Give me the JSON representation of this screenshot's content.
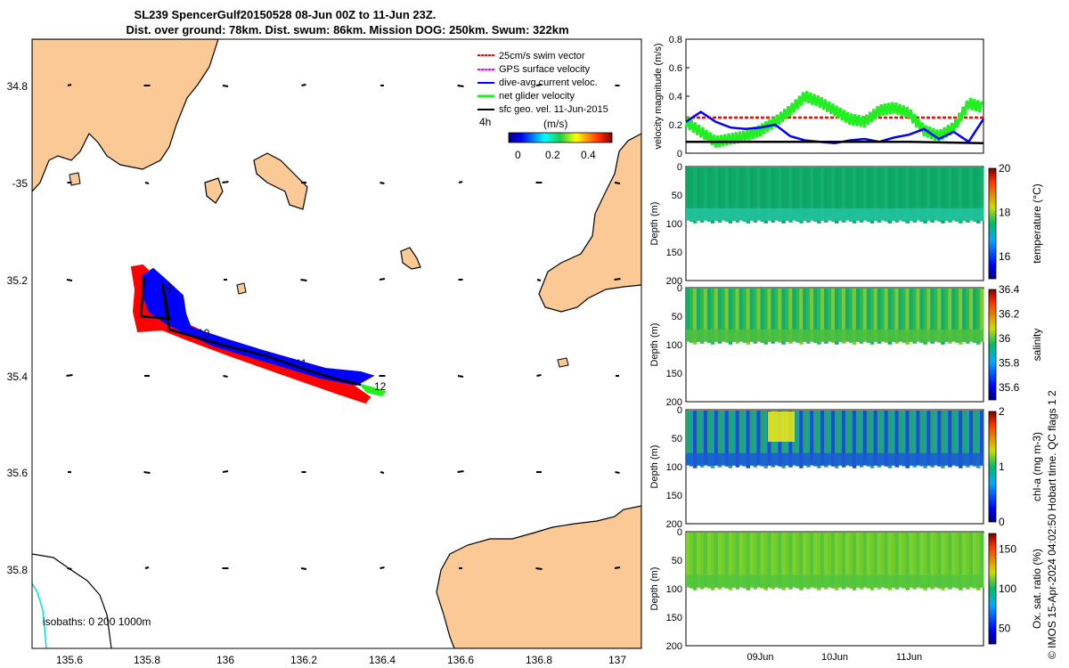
{
  "header": {
    "title_line1": "SL239 SpencerGulf20150528 08-Jun 00Z to 11-Jun 23Z.",
    "title_line2": "Dist. over ground: 78km. Dist. swum: 86km. Mission DOG: 250km. Swum: 322km"
  },
  "map": {
    "lon_ticks": [
      "135.6",
      "135.8",
      "136",
      "136.2",
      "136.4",
      "136.6",
      "136.8",
      "137"
    ],
    "lat_ticks": [
      "34.8",
      "-35",
      "35.2",
      "35.4",
      "35.6",
      "35.8"
    ],
    "legend": [
      {
        "label": "25cm/s swim vector",
        "color": "#ff0000"
      },
      {
        "label": "GPS surface velocity",
        "color": "#ff00ff"
      },
      {
        "label": "dive-avg current veloc.",
        "color": "#0000ff"
      },
      {
        "label": "net glider velocity",
        "color": "#00dd00"
      },
      {
        "label": "sfc geo. vel. 11-Jun-2015",
        "color": "#000000"
      }
    ],
    "interval_label": "4h",
    "colorbar_unit": "(m/s)",
    "colorbar_ticks": [
      "0",
      "0.2",
      "0.4"
    ],
    "day_labels": [
      "9",
      "10",
      "11",
      "12"
    ],
    "isobaths_label": "isobaths: 0   200  1000m",
    "land_color": "#fbc996"
  },
  "chart_data": [
    {
      "type": "line",
      "title": "",
      "xlabel": "",
      "ylabel": "velocity magnitude (m/s)",
      "ylim": [
        0,
        0.8
      ],
      "yticks": [
        "0",
        "0.2",
        "0.4",
        "0.6",
        "0.8"
      ],
      "xlim_days": [
        8.0,
        12.0
      ],
      "series": [
        {
          "name": "25cm/s swim vector",
          "color": "#ff0000",
          "x": [
            8.0,
            12.0
          ],
          "values": [
            0.25,
            0.25
          ]
        },
        {
          "name": "net glider velocity",
          "color": "#22ee22",
          "x": [
            8.0,
            8.2,
            8.4,
            8.6,
            8.8,
            9.0,
            9.2,
            9.4,
            9.6,
            9.8,
            10.0,
            10.2,
            10.4,
            10.6,
            10.8,
            11.0,
            11.2,
            11.4,
            11.6,
            11.8,
            12.0
          ],
          "values": [
            0.22,
            0.15,
            0.08,
            0.1,
            0.12,
            0.16,
            0.22,
            0.3,
            0.4,
            0.36,
            0.3,
            0.24,
            0.22,
            0.3,
            0.32,
            0.28,
            0.16,
            0.12,
            0.18,
            0.35,
            0.32
          ]
        },
        {
          "name": "dive-avg current veloc.",
          "color": "#0000ff",
          "x": [
            8.0,
            8.2,
            8.4,
            8.6,
            8.8,
            9.0,
            9.2,
            9.4,
            9.6,
            9.8,
            10.0,
            10.2,
            10.4,
            10.6,
            10.8,
            11.0,
            11.2,
            11.4,
            11.6,
            11.8,
            12.0
          ],
          "values": [
            0.22,
            0.29,
            0.22,
            0.18,
            0.17,
            0.18,
            0.2,
            0.12,
            0.09,
            0.08,
            0.07,
            0.09,
            0.1,
            0.08,
            0.11,
            0.13,
            0.17,
            0.1,
            0.15,
            0.08,
            0.24
          ]
        },
        {
          "name": "sfc geo. vel.",
          "color": "#000000",
          "x": [
            8.0,
            9.0,
            10.0,
            11.0,
            12.0
          ],
          "values": [
            0.08,
            0.08,
            0.08,
            0.08,
            0.07
          ]
        }
      ]
    },
    {
      "type": "heatmap",
      "ylabel": "Depth (m)",
      "colorbar_label": "temperature (°C)",
      "ylim": [
        200,
        0
      ],
      "yticks": [
        "0",
        "50",
        "100",
        "150",
        "200"
      ],
      "clim": [
        15,
        20
      ],
      "cticks": [
        "16",
        "18",
        "20"
      ],
      "bottom_depth_m": 95,
      "color_stops": [
        "#0ea565",
        "#10a866",
        "#14b070"
      ]
    },
    {
      "type": "heatmap",
      "ylabel": "Depth (m)",
      "colorbar_label": "salinity",
      "ylim": [
        200,
        0
      ],
      "yticks": [
        "0",
        "50",
        "100",
        "150",
        "200"
      ],
      "clim": [
        35.5,
        36.4
      ],
      "cticks": [
        "35.6",
        "35.8",
        "36",
        "36.2",
        "36.4"
      ],
      "bottom_depth_m": 95,
      "color_stops": [
        "#14ab6e",
        "#30b850",
        "#7cc83a"
      ]
    },
    {
      "type": "heatmap",
      "ylabel": "Depth (m)",
      "colorbar_label": "chl-a (mg m-3)",
      "ylim": [
        200,
        0
      ],
      "yticks": [
        "0",
        "50",
        "100",
        "150",
        "200"
      ],
      "clim": [
        0,
        2
      ],
      "cticks": [
        "0",
        "1",
        "2"
      ],
      "bottom_depth_m": 98,
      "color_stops": [
        "#23a46c",
        "#1ca0a0",
        "#1b4ed0"
      ]
    },
    {
      "type": "heatmap",
      "ylabel": "Depth (m)",
      "colorbar_label": "Ox. sat. ratio (%)",
      "ylim": [
        200,
        0
      ],
      "yticks": [
        "0",
        "50",
        "100",
        "150",
        "200"
      ],
      "clim": [
        30,
        170
      ],
      "cticks": [
        "50",
        "100",
        "150"
      ],
      "bottom_depth_m": 98,
      "color_stops": [
        "#7fd02d",
        "#6ccc30",
        "#57c43a"
      ]
    }
  ],
  "time_axis": {
    "ticks": [
      "09Jun",
      "10Jun",
      "11Jun"
    ],
    "tick_days": [
      9,
      10,
      11
    ]
  },
  "copyright": "© IMOS 15-Apr-2024 04:02:50 Hobart time. QC flags 1  2"
}
